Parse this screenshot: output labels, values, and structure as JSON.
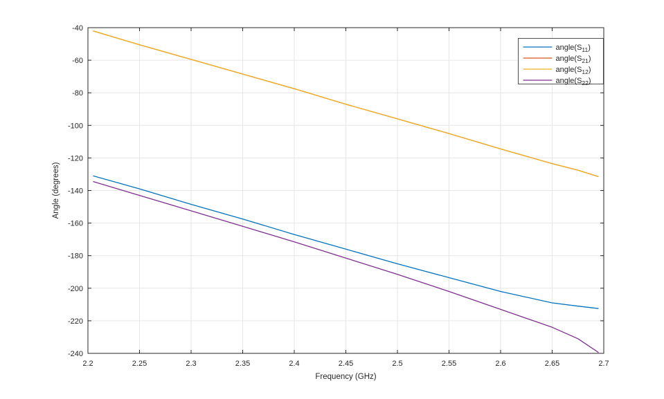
{
  "figure": {
    "background": "#ffffff"
  },
  "style": {
    "axis_color": "#262626",
    "grid_color": "#e6e6e6",
    "text_color": "#262626",
    "legend_background": "#ffffff",
    "legend_border": "#262626"
  },
  "chart_data": {
    "type": "line",
    "title": "",
    "xlabel": "Frequency (GHz)",
    "ylabel": "Angle (degrees)",
    "xlim": [
      2.2,
      2.7
    ],
    "ylim": [
      -240,
      -40
    ],
    "xticks": [
      2.2,
      2.25,
      2.3,
      2.35,
      2.4,
      2.45,
      2.5,
      2.55,
      2.6,
      2.65,
      2.7
    ],
    "xtick_labels": [
      "2.2",
      "2.25",
      "2.3",
      "2.35",
      "2.4",
      "2.45",
      "2.5",
      "2.55",
      "2.6",
      "2.65",
      "2.7"
    ],
    "yticks": [
      -240,
      -220,
      -200,
      -180,
      -160,
      -140,
      -120,
      -100,
      -80,
      -60,
      -40
    ],
    "ytick_labels": [
      "-240",
      "-220",
      "-200",
      "-180",
      "-160",
      "-140",
      "-120",
      "-100",
      "-80",
      "-60",
      "-40"
    ],
    "grid": true,
    "legend_position": "northeast",
    "x": [
      2.205,
      2.25,
      2.3,
      2.35,
      2.4,
      2.45,
      2.5,
      2.55,
      2.6,
      2.65,
      2.675,
      2.695
    ],
    "series": [
      {
        "name": "angle(S11)",
        "legend_pre": "angle(S",
        "legend_sub": "11",
        "legend_post": ")",
        "color": "#0072BD",
        "values": [
          -131,
          -139,
          -148.5,
          -157.5,
          -167,
          -176,
          -185,
          -193.5,
          -202,
          -209,
          -211,
          -212.5
        ]
      },
      {
        "name": "angle(S21)",
        "legend_pre": "angle(S",
        "legend_sub": "21",
        "legend_post": ")",
        "color": "#D95319",
        "values": [
          -42,
          -50.5,
          -59.5,
          -68.5,
          -77.5,
          -87,
          -96,
          -105,
          -114.5,
          -123.5,
          -127.5,
          -131.5
        ]
      },
      {
        "name": "angle(S12)",
        "legend_pre": "angle(S",
        "legend_sub": "12",
        "legend_post": ")",
        "color": "#EDB120",
        "values": [
          -42,
          -50.5,
          -59.5,
          -68.5,
          -77.5,
          -87,
          -96,
          -105,
          -114.5,
          -123.5,
          -127.5,
          -131.5
        ]
      },
      {
        "name": "angle(S22)",
        "legend_pre": "angle(S",
        "legend_sub": "22",
        "legend_post": ")",
        "color": "#7E2F8E",
        "values": [
          -134.5,
          -143,
          -152.5,
          -162,
          -171.5,
          -181.5,
          -191.5,
          -202,
          -213,
          -224,
          -231,
          -239.5
        ]
      }
    ]
  }
}
